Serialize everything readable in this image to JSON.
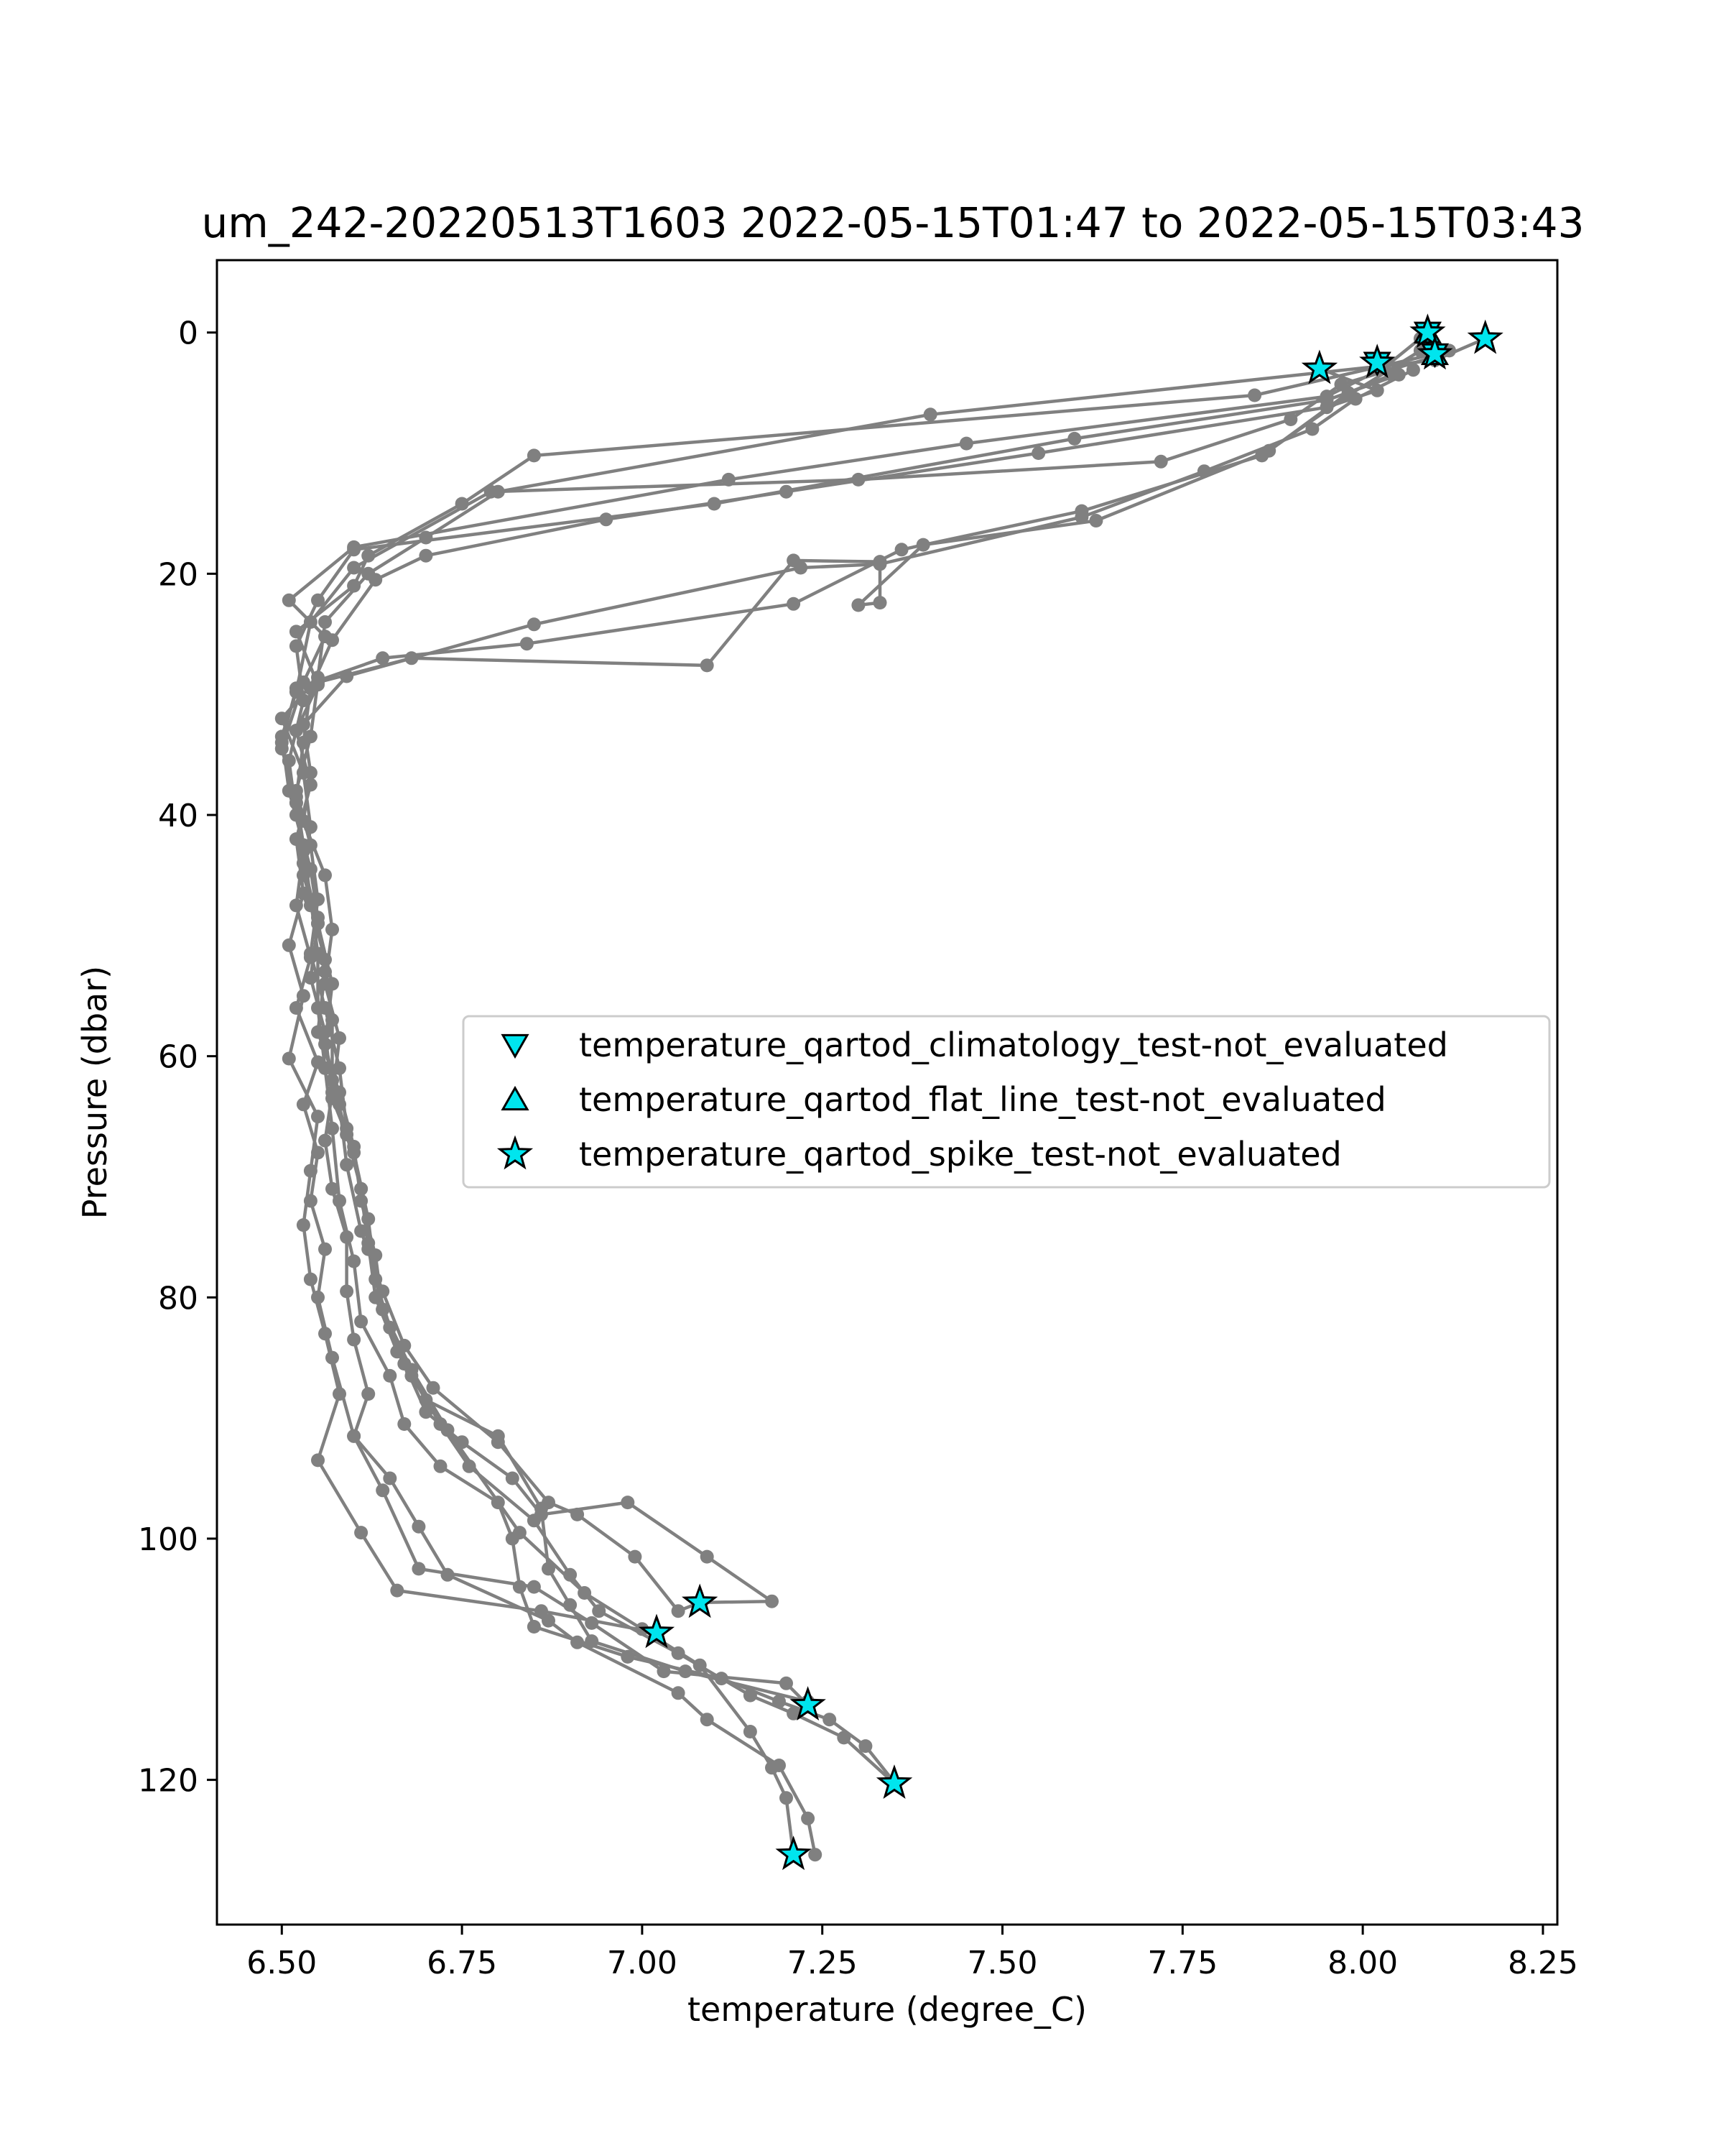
{
  "chart_data": {
    "type": "line",
    "title": "um_242-20220513T1603 2022-05-15T01:47 to 2022-05-15T03:43",
    "xlabel": "temperature (degree_C)",
    "ylabel": "Pressure (dbar)",
    "xlim": [
      6.41,
      8.27
    ],
    "ylim": [
      132,
      -6
    ],
    "y_inverted": true,
    "xticks": [
      "6.50",
      "6.75",
      "7.00",
      "7.25",
      "7.50",
      "7.75",
      "8.00",
      "8.25"
    ],
    "xtick_values": [
      6.5,
      6.75,
      7.0,
      7.25,
      7.5,
      7.75,
      8.0,
      8.25
    ],
    "yticks": [
      "0",
      "20",
      "40",
      "60",
      "80",
      "100",
      "120"
    ],
    "ytick_values": [
      0,
      20,
      40,
      60,
      80,
      100,
      120
    ],
    "grid": false,
    "legend_position": "center-right",
    "colors": {
      "profile_line": "#808080",
      "flag_marker": "#00e5ee",
      "marker_edge": "#000000"
    },
    "series": [
      {
        "points": [
          [
            8.08,
            0.5
          ],
          [
            8.12,
            1.5
          ],
          [
            7.85,
            5.2
          ],
          [
            6.85,
            10.2
          ],
          [
            6.75,
            14.2
          ],
          [
            6.62,
            18.5
          ],
          [
            6.6,
            21.0
          ],
          [
            6.52,
            24.8
          ],
          [
            6.55,
            29.2
          ],
          [
            6.52,
            33.0
          ],
          [
            6.54,
            37.5
          ],
          [
            6.52,
            42.0
          ],
          [
            6.53,
            46.5
          ],
          [
            6.51,
            50.8
          ],
          [
            6.53,
            55.0
          ],
          [
            6.51,
            60.2
          ],
          [
            6.55,
            65.0
          ],
          [
            6.54,
            69.5
          ],
          [
            6.53,
            74.0
          ],
          [
            6.54,
            78.5
          ],
          [
            6.56,
            83.0
          ],
          [
            6.58,
            88.0
          ],
          [
            6.55,
            93.5
          ],
          [
            6.61,
            99.5
          ],
          [
            6.66,
            104.3
          ],
          [
            6.86,
            106.0
          ],
          [
            7.02,
            107.8
          ]
        ]
      },
      {
        "points": [
          [
            8.17,
            0.5
          ],
          [
            8.1,
            2.3
          ],
          [
            7.4,
            6.8
          ],
          [
            6.8,
            13.2
          ],
          [
            6.7,
            17.0
          ],
          [
            6.62,
            20.0
          ],
          [
            6.56,
            24.0
          ],
          [
            6.55,
            28.6
          ],
          [
            6.5,
            32.0
          ],
          [
            6.53,
            36.5
          ],
          [
            6.54,
            41.0
          ],
          [
            6.53,
            45.0
          ],
          [
            6.55,
            49.0
          ],
          [
            6.54,
            53.5
          ],
          [
            6.56,
            58.0
          ],
          [
            6.57,
            63.0
          ],
          [
            6.56,
            67.0
          ],
          [
            6.57,
            71.0
          ],
          [
            6.59,
            75.0
          ],
          [
            6.59,
            79.5
          ],
          [
            6.6,
            83.5
          ],
          [
            6.62,
            88.0
          ],
          [
            6.6,
            91.5
          ],
          [
            6.64,
            96.0
          ],
          [
            6.69,
            102.5
          ],
          [
            6.85,
            104.0
          ],
          [
            6.93,
            107.0
          ],
          [
            7.03,
            111.0
          ],
          [
            7.2,
            112.0
          ],
          [
            7.23,
            113.8
          ]
        ]
      },
      {
        "points": [
          [
            8.09,
            0.0
          ],
          [
            8.03,
            2.9
          ],
          [
            7.95,
            5.3
          ],
          [
            7.45,
            9.2
          ],
          [
            7.12,
            12.2
          ],
          [
            6.6,
            17.8
          ],
          [
            6.51,
            22.2
          ],
          [
            6.56,
            25.2
          ],
          [
            6.53,
            29.0
          ],
          [
            6.5,
            34.5
          ],
          [
            6.52,
            39.0
          ],
          [
            6.53,
            43.0
          ],
          [
            6.52,
            47.5
          ],
          [
            6.54,
            51.8
          ],
          [
            6.52,
            56.0
          ],
          [
            6.55,
            60.5
          ],
          [
            6.53,
            64.0
          ],
          [
            6.55,
            68.0
          ],
          [
            6.54,
            72.0
          ],
          [
            6.56,
            76.0
          ],
          [
            6.55,
            80.0
          ],
          [
            6.57,
            85.0
          ],
          [
            6.6,
            91.5
          ],
          [
            6.65,
            95.0
          ],
          [
            6.69,
            99.0
          ],
          [
            6.73,
            103.0
          ],
          [
            6.87,
            106.8
          ],
          [
            6.91,
            108.6
          ],
          [
            7.05,
            112.8
          ],
          [
            7.09,
            115.0
          ],
          [
            7.19,
            118.8
          ],
          [
            7.23,
            123.2
          ],
          [
            7.24,
            126.2
          ]
        ]
      },
      {
        "points": [
          [
            7.94,
            3.0
          ],
          [
            8.02,
            4.8
          ],
          [
            7.95,
            6.2
          ],
          [
            7.55,
            10.0
          ],
          [
            7.2,
            13.2
          ],
          [
            6.95,
            15.5
          ],
          [
            6.7,
            18.5
          ],
          [
            6.63,
            20.5
          ],
          [
            6.57,
            25.5
          ],
          [
            6.54,
            29.5
          ],
          [
            6.53,
            34.0
          ],
          [
            6.52,
            38.5
          ],
          [
            6.53,
            42.5
          ],
          [
            6.54,
            47.0
          ],
          [
            6.55,
            51.5
          ],
          [
            6.55,
            56.0
          ],
          [
            6.56,
            61.0
          ],
          [
            6.57,
            66.0
          ],
          [
            6.58,
            72.0
          ],
          [
            6.6,
            77.0
          ],
          [
            6.61,
            82.0
          ],
          [
            6.65,
            86.5
          ],
          [
            6.67,
            90.5
          ],
          [
            6.72,
            94.0
          ],
          [
            6.8,
            97.0
          ],
          [
            6.82,
            100.0
          ],
          [
            6.83,
            104.0
          ],
          [
            6.85,
            107.3
          ],
          [
            6.98,
            109.8
          ],
          [
            7.11,
            111.6
          ],
          [
            7.19,
            113.5
          ],
          [
            7.26,
            115.0
          ],
          [
            7.31,
            117.2
          ],
          [
            7.35,
            120.2
          ]
        ]
      },
      {
        "points": [
          [
            8.02,
            2.5
          ],
          [
            8.05,
            3.5
          ],
          [
            7.95,
            5.6
          ],
          [
            7.6,
            8.8
          ],
          [
            7.1,
            14.2
          ],
          [
            6.6,
            18.0
          ],
          [
            6.55,
            22.2
          ],
          [
            6.52,
            26.0
          ],
          [
            6.53,
            30.5
          ],
          [
            6.51,
            35.5
          ],
          [
            6.52,
            40.0
          ],
          [
            6.54,
            44.5
          ],
          [
            6.55,
            48.5
          ],
          [
            6.56,
            53.0
          ],
          [
            6.55,
            58.0
          ],
          [
            6.58,
            63.0
          ],
          [
            6.6,
            67.5
          ],
          [
            6.61,
            72.0
          ],
          [
            6.63,
            76.5
          ],
          [
            6.64,
            81.0
          ],
          [
            6.67,
            85.5
          ],
          [
            6.7,
            89.5
          ],
          [
            6.75,
            92.0
          ],
          [
            6.82,
            95.0
          ],
          [
            6.86,
            98.0
          ],
          [
            6.98,
            97.0
          ],
          [
            7.09,
            101.5
          ],
          [
            7.18,
            105.2
          ],
          [
            7.08,
            105.3
          ]
        ]
      },
      {
        "points": [
          [
            8.1,
            2.0
          ],
          [
            7.97,
            4.3
          ],
          [
            7.9,
            7.2
          ],
          [
            7.72,
            10.7
          ],
          [
            7.3,
            12.2
          ],
          [
            6.79,
            13.2
          ],
          [
            6.6,
            19.5
          ],
          [
            6.54,
            24.0
          ],
          [
            6.52,
            29.8
          ],
          [
            6.5,
            33.5
          ],
          [
            6.51,
            38.0
          ],
          [
            6.53,
            42.5
          ],
          [
            6.54,
            47.5
          ],
          [
            6.56,
            52.0
          ],
          [
            6.57,
            57.0
          ],
          [
            6.57,
            62.0
          ],
          [
            6.59,
            66.5
          ],
          [
            6.61,
            71.0
          ],
          [
            6.62,
            75.5
          ],
          [
            6.63,
            80.0
          ],
          [
            6.66,
            84.5
          ],
          [
            6.7,
            88.5
          ],
          [
            6.8,
            91.5
          ],
          [
            6.86,
            97.5
          ],
          [
            6.87,
            102.5
          ],
          [
            6.9,
            105.5
          ],
          [
            6.93,
            108.5
          ],
          [
            7.06,
            111.0
          ],
          [
            7.23,
            113.5
          ]
        ]
      },
      {
        "points": [
          [
            8.08,
            1.5
          ],
          [
            7.98,
            5.2
          ],
          [
            7.86,
            10.2
          ],
          [
            7.61,
            14.8
          ],
          [
            7.36,
            18.0
          ],
          [
            7.21,
            22.5
          ],
          [
            6.84,
            25.8
          ],
          [
            6.64,
            27.0
          ],
          [
            6.52,
            29.5
          ],
          [
            6.5,
            34.0
          ],
          [
            6.52,
            39.0
          ],
          [
            6.53,
            44.0
          ],
          [
            6.55,
            49.0
          ],
          [
            6.57,
            54.0
          ],
          [
            6.56,
            59.0
          ],
          [
            6.58,
            64.0
          ],
          [
            6.59,
            69.0
          ],
          [
            6.61,
            74.5
          ],
          [
            6.64,
            79.5
          ],
          [
            6.67,
            84.0
          ],
          [
            6.71,
            87.5
          ],
          [
            6.8,
            92.0
          ],
          [
            6.87,
            97.0
          ],
          [
            6.91,
            98.0
          ],
          [
            6.99,
            101.5
          ],
          [
            7.05,
            106.0
          ],
          [
            7.08,
            105.3
          ]
        ]
      },
      {
        "points": [
          [
            8.07,
            3.1
          ],
          [
            7.99,
            5.5
          ],
          [
            7.93,
            8.0
          ],
          [
            7.78,
            11.5
          ],
          [
            7.61,
            15.3
          ],
          [
            7.33,
            19.2
          ],
          [
            7.22,
            19.5
          ],
          [
            6.85,
            24.2
          ],
          [
            6.59,
            28.5
          ],
          [
            6.53,
            32.5
          ],
          [
            6.54,
            36.5
          ],
          [
            6.53,
            40.5
          ],
          [
            6.56,
            45.0
          ],
          [
            6.57,
            49.5
          ],
          [
            6.56,
            54.0
          ],
          [
            6.58,
            58.5
          ],
          [
            6.57,
            63.5
          ],
          [
            6.6,
            68.0
          ],
          [
            6.62,
            73.5
          ],
          [
            6.63,
            78.5
          ],
          [
            6.65,
            82.5
          ],
          [
            6.68,
            86.5
          ],
          [
            6.72,
            90.5
          ],
          [
            6.76,
            94.0
          ],
          [
            6.85,
            98.5
          ],
          [
            6.9,
            103.0
          ],
          [
            6.94,
            106.0
          ],
          [
            7.05,
            109.5
          ],
          [
            7.15,
            113.0
          ],
          [
            7.21,
            114.5
          ],
          [
            7.28,
            116.5
          ],
          [
            7.35,
            120.3
          ]
        ]
      },
      {
        "points": [
          [
            8.04,
            3.5
          ],
          [
            7.98,
            5.0
          ],
          [
            7.87,
            9.8
          ],
          [
            7.63,
            15.6
          ],
          [
            7.39,
            17.6
          ],
          [
            7.3,
            22.6
          ],
          [
            7.33,
            22.4
          ],
          [
            7.33,
            19.0
          ],
          [
            7.21,
            18.9
          ],
          [
            7.09,
            27.6
          ],
          [
            6.68,
            27.0
          ],
          [
            6.55,
            29.0
          ],
          [
            6.54,
            33.5
          ],
          [
            6.52,
            38.0
          ],
          [
            6.54,
            42.5
          ],
          [
            6.55,
            47.0
          ],
          [
            6.54,
            51.5
          ],
          [
            6.56,
            56.0
          ],
          [
            6.58,
            61.0
          ],
          [
            6.59,
            66.0
          ],
          [
            6.61,
            71.0
          ],
          [
            6.62,
            76.0
          ],
          [
            6.64,
            81.0
          ],
          [
            6.68,
            86.0
          ],
          [
            6.73,
            91.0
          ],
          [
            6.83,
            99.5
          ],
          [
            6.92,
            104.5
          ],
          [
            7.0,
            107.5
          ],
          [
            7.08,
            110.5
          ],
          [
            7.15,
            116.0
          ],
          [
            7.18,
            119.0
          ],
          [
            7.2,
            121.5
          ],
          [
            7.21,
            126.2
          ]
        ]
      }
    ],
    "legend": [
      {
        "label": "temperature_qartod_climatology_test-not_evaluated",
        "marker": "triangle_down"
      },
      {
        "label": "temperature_qartod_flat_line_test-not_evaluated",
        "marker": "triangle_up"
      },
      {
        "label": "temperature_qartod_spike_test-not_evaluated",
        "marker": "star"
      }
    ],
    "flagged_points": {
      "climatology": [
        [
          8.09,
          0.0
        ],
        [
          8.1,
          1.8
        ],
        [
          8.02,
          2.5
        ]
      ],
      "flat_line": [
        [
          8.09,
          0.0
        ],
        [
          8.1,
          1.8
        ]
      ],
      "spike": [
        [
          8.09,
          0.0
        ],
        [
          8.17,
          0.5
        ],
        [
          8.1,
          1.8
        ],
        [
          8.02,
          2.5
        ],
        [
          7.94,
          3.0
        ],
        [
          7.08,
          105.3
        ],
        [
          7.02,
          107.8
        ],
        [
          7.23,
          113.8
        ],
        [
          7.35,
          120.3
        ],
        [
          7.21,
          126.2
        ]
      ]
    }
  }
}
